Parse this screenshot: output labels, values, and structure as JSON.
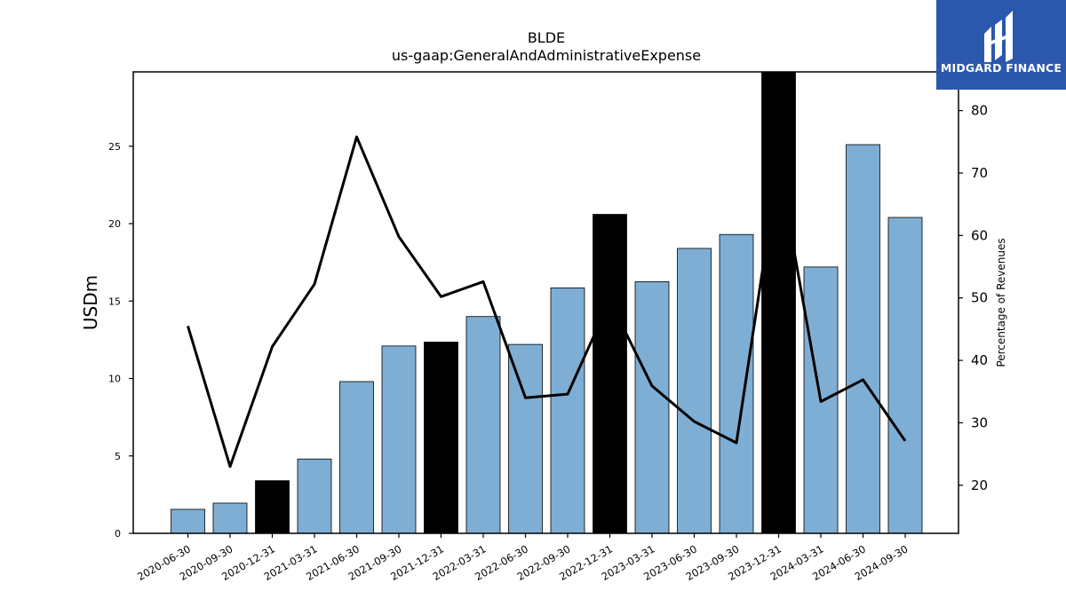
{
  "chart_data": {
    "type": "bar",
    "title": "BLDE",
    "subtitle": "us-gaap:GeneralAndAdministrativeExpense",
    "ylabel": "USDm",
    "y2label": "Percentage of Revenues",
    "ylim": [
      0,
      29.8
    ],
    "y2lim": [
      12.3,
      86.2
    ],
    "yticks": [
      0,
      5,
      10,
      15,
      20,
      25
    ],
    "y2ticks": [
      20,
      30,
      40,
      50,
      60,
      70,
      80
    ],
    "categories": [
      "2020-06-30",
      "2020-09-30",
      "2020-12-31",
      "2021-03-31",
      "2021-06-30",
      "2021-09-30",
      "2021-12-31",
      "2022-03-31",
      "2022-06-30",
      "2022-09-30",
      "2022-12-31",
      "2023-03-31",
      "2023-06-30",
      "2023-09-30",
      "2023-12-31",
      "2024-03-31",
      "2024-06-30",
      "2024-09-30"
    ],
    "series": [
      {
        "kind": "bar",
        "axis": "left",
        "values": [
          1.55,
          1.95,
          3.4,
          4.8,
          9.8,
          12.1,
          12.35,
          14.0,
          12.2,
          15.85,
          20.6,
          16.25,
          18.4,
          19.3,
          29.8,
          17.2,
          25.1,
          20.4
        ],
        "highlight": [
          false,
          false,
          true,
          false,
          false,
          false,
          true,
          false,
          false,
          false,
          true,
          false,
          false,
          false,
          true,
          false,
          false,
          false
        ]
      },
      {
        "kind": "line",
        "axis": "right",
        "values": [
          45.5,
          23.0,
          42.2,
          52.2,
          75.8,
          59.8,
          50.2,
          52.6,
          34.0,
          34.6,
          49.6,
          35.9,
          30.2,
          26.8,
          71.5,
          33.4,
          36.9,
          27.1
        ]
      }
    ],
    "colors": {
      "bar": "#7eaed3",
      "bar_highlight": "#000000",
      "line": "#000000"
    },
    "grid": false,
    "legend": "none"
  },
  "logo": {
    "name": "midgard-logo-icon",
    "text": "MIDGARD FINANCE",
    "background": "#2b58ad"
  }
}
